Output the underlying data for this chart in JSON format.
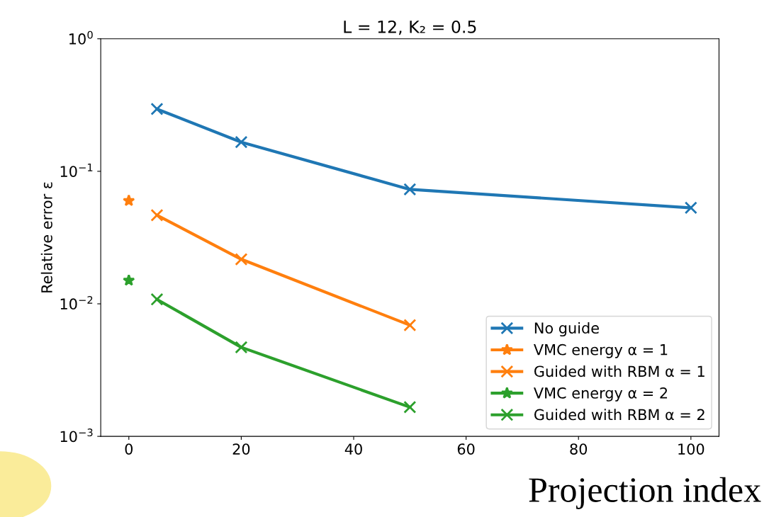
{
  "chart_data": {
    "type": "line",
    "title": "L = 12, K₂ = 0.5",
    "xlabel": "Projection index",
    "ylabel": "Relative error ε",
    "log": "y",
    "xlim": [
      -5,
      105
    ],
    "xticks": [
      0,
      20,
      40,
      60,
      80,
      100
    ],
    "ylim": [
      0.001,
      1
    ],
    "yticks": [
      {
        "value": 0.001,
        "label": "10$^{−3}$"
      },
      {
        "value": 0.01,
        "label": "10$^{−2}$"
      },
      {
        "value": 0.1,
        "label": "10$^{−1}$"
      },
      {
        "value": 1,
        "label": "10$^{0}$"
      }
    ],
    "grid": false,
    "legend": "bottom right",
    "series": [
      {
        "name": "No guide",
        "color": "#1f77b4",
        "marker": "cross",
        "x": [
          5,
          20,
          50,
          100
        ],
        "values": [
          0.295,
          0.166,
          0.073,
          0.053
        ]
      },
      {
        "name": "VMC energy α = 1",
        "color": "#ff7f0e",
        "marker": "star",
        "x": [
          0
        ],
        "values": [
          0.06
        ]
      },
      {
        "name": "Guided with RBM α = 1",
        "color": "#ff7f0e",
        "marker": "cross",
        "x": [
          5,
          20,
          50
        ],
        "values": [
          0.0466,
          0.0217,
          0.0069
        ]
      },
      {
        "name": "VMC energy α = 2",
        "color": "#2ca02c",
        "marker": "star",
        "x": [
          0
        ],
        "values": [
          0.015
        ]
      },
      {
        "name": "Guided with RBM α = 2",
        "color": "#2ca02c",
        "marker": "cross",
        "x": [
          5,
          20,
          50
        ],
        "values": [
          0.0108,
          0.0047,
          0.00166
        ]
      }
    ]
  }
}
